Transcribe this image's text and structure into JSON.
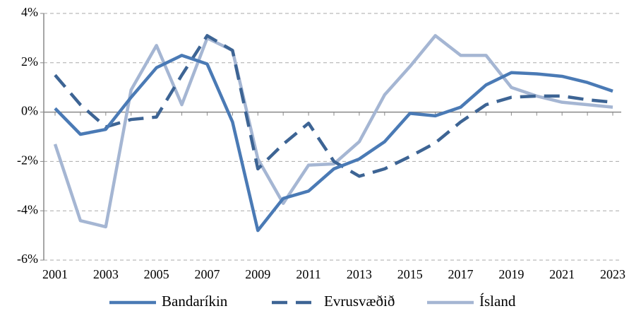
{
  "chart_data": {
    "type": "line",
    "x": [
      2001,
      2002,
      2003,
      2004,
      2005,
      2006,
      2007,
      2008,
      2009,
      2010,
      2011,
      2012,
      2013,
      2014,
      2015,
      2016,
      2017,
      2018,
      2019,
      2020,
      2021,
      2022,
      2023
    ],
    "series": [
      {
        "name": "Bandaríkin",
        "color": "#4a7ab5",
        "dash": "solid",
        "values": [
          0.15,
          -0.9,
          -0.7,
          0.6,
          1.8,
          2.3,
          1.95,
          -0.4,
          -4.8,
          -3.5,
          -3.2,
          -2.3,
          -1.9,
          -1.2,
          -0.05,
          -0.15,
          0.2,
          1.1,
          1.6,
          1.55,
          1.45,
          1.2,
          0.85
        ]
      },
      {
        "name": "Evrusvæðið",
        "color": "#3d6494",
        "dash": "dashed",
        "values": [
          1.5,
          0.3,
          -0.6,
          -0.3,
          -0.2,
          1.5,
          3.1,
          2.5,
          -2.3,
          -1.3,
          -0.45,
          -2.0,
          -2.6,
          -2.3,
          -1.8,
          -1.25,
          -0.4,
          0.3,
          0.6,
          0.65,
          0.65,
          0.5,
          0.4
        ]
      },
      {
        "name": "Ísland",
        "color": "#a5b6d3",
        "dash": "solid",
        "values": [
          -1.3,
          -4.4,
          -4.65,
          0.9,
          2.7,
          0.3,
          3.0,
          2.5,
          -1.9,
          -3.7,
          -2.15,
          -2.1,
          -1.2,
          0.7,
          1.85,
          3.1,
          2.3,
          2.3,
          1.0,
          0.65,
          0.4,
          0.3,
          0.2
        ]
      }
    ],
    "xlim": [
      2001,
      2023
    ],
    "xticks": [
      2001,
      2003,
      2005,
      2007,
      2009,
      2011,
      2013,
      2015,
      2017,
      2019,
      2021,
      2023
    ],
    "ylim": [
      -6,
      4
    ],
    "yticks": [
      {
        "value": -6,
        "label": "-6%"
      },
      {
        "value": -4,
        "label": "-4%"
      },
      {
        "value": -2,
        "label": "-2%"
      },
      {
        "value": 0,
        "label": "0%"
      },
      {
        "value": 2,
        "label": "2%"
      },
      {
        "value": 4,
        "label": "4%"
      }
    ],
    "grid": true,
    "legend": "bottom"
  }
}
